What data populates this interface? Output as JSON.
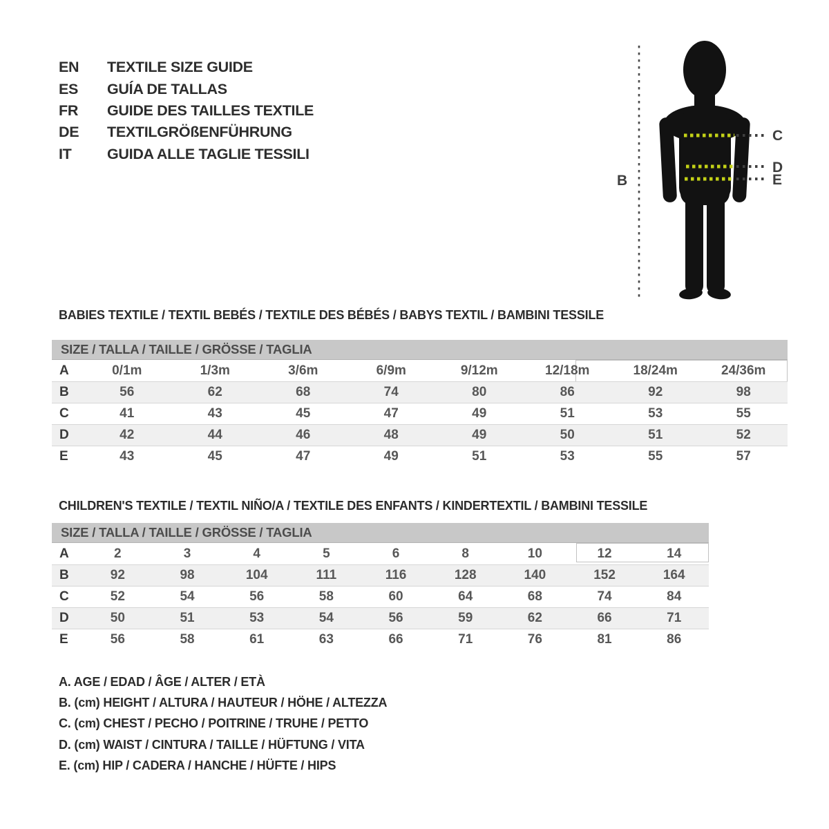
{
  "title_block": {
    "entries": [
      {
        "lang": "EN",
        "text": "TEXTILE SIZE GUIDE"
      },
      {
        "lang": "ES",
        "text": "GUÍA DE TALLAS"
      },
      {
        "lang": "FR",
        "text": "GUIDE DES TAILLES TEXTILE"
      },
      {
        "lang": "DE",
        "text": "TEXTILGRÖßENFÜHRUNG"
      },
      {
        "lang": "IT",
        "text": "GUIDA ALLE TAGLIE TESSILI"
      }
    ]
  },
  "figure": {
    "labels": {
      "height": "B",
      "chest": "C",
      "waist": "D",
      "hip": "E"
    },
    "colors": {
      "silhouette": "#121212",
      "measure_dots": "#c3d117",
      "leader_dots": "#3f3f3f"
    }
  },
  "babies_table": {
    "section_title": "BABIES TEXTILE / TEXTIL BEBÉS / TEXTILE DES BÉBÉS / BABYS TEXTIL / BAMBINI TESSILE",
    "header": "SIZE / TALLA / TAILLE / GRÖSSE / TAGLIA",
    "rows": [
      {
        "label": "A",
        "values": [
          "0/1m",
          "1/3m",
          "3/6m",
          "6/9m",
          "9/12m",
          "12/18m",
          "18/24m",
          "24/36m"
        ]
      },
      {
        "label": "B",
        "values": [
          "56",
          "62",
          "68",
          "74",
          "80",
          "86",
          "92",
          "98"
        ]
      },
      {
        "label": "C",
        "values": [
          "41",
          "43",
          "45",
          "47",
          "49",
          "51",
          "53",
          "55"
        ]
      },
      {
        "label": "D",
        "values": [
          "42",
          "44",
          "46",
          "48",
          "49",
          "50",
          "51",
          "52"
        ]
      },
      {
        "label": "E",
        "values": [
          "43",
          "45",
          "47",
          "49",
          "51",
          "53",
          "55",
          "57"
        ]
      }
    ]
  },
  "children_table": {
    "section_title": "CHILDREN'S TEXTILE / TEXTIL NIÑO/A / TEXTILE DES ENFANTS / KINDERTEXTIL / BAMBINI TESSILE",
    "header": "SIZE / TALLA / TAILLE / GRÖSSE / TAGLIA",
    "rows": [
      {
        "label": "A",
        "values": [
          "2",
          "3",
          "4",
          "5",
          "6",
          "8",
          "10",
          "12",
          "14"
        ]
      },
      {
        "label": "B",
        "values": [
          "92",
          "98",
          "104",
          "111",
          "116",
          "128",
          "140",
          "152",
          "164"
        ]
      },
      {
        "label": "C",
        "values": [
          "52",
          "54",
          "56",
          "58",
          "60",
          "64",
          "68",
          "74",
          "84"
        ]
      },
      {
        "label": "D",
        "values": [
          "50",
          "51",
          "53",
          "54",
          "56",
          "59",
          "62",
          "66",
          "71"
        ]
      },
      {
        "label": "E",
        "values": [
          "56",
          "58",
          "61",
          "63",
          "66",
          "71",
          "76",
          "81",
          "86"
        ]
      }
    ]
  },
  "legend": {
    "items": [
      "A. AGE / EDAD / ÂGE / ALTER / ETÀ",
      "B. (cm) HEIGHT / ALTURA / HAUTEUR / HÖHE / ALTEZZA",
      "C. (cm) CHEST / PECHO / POITRINE / TRUHE / PETTO",
      "D. (cm) WAIST / CINTURA / TAILLE / HÜFTUNG / VITA",
      "E. (cm) HIP / CADERA / HANCHE / HÜFTE / HIPS"
    ]
  },
  "colors": {
    "table_header_band": "#c8c8c8",
    "row_stripe": "#f0f0f0",
    "text_dark": "#2d2d2d",
    "text_table": "#575757"
  }
}
